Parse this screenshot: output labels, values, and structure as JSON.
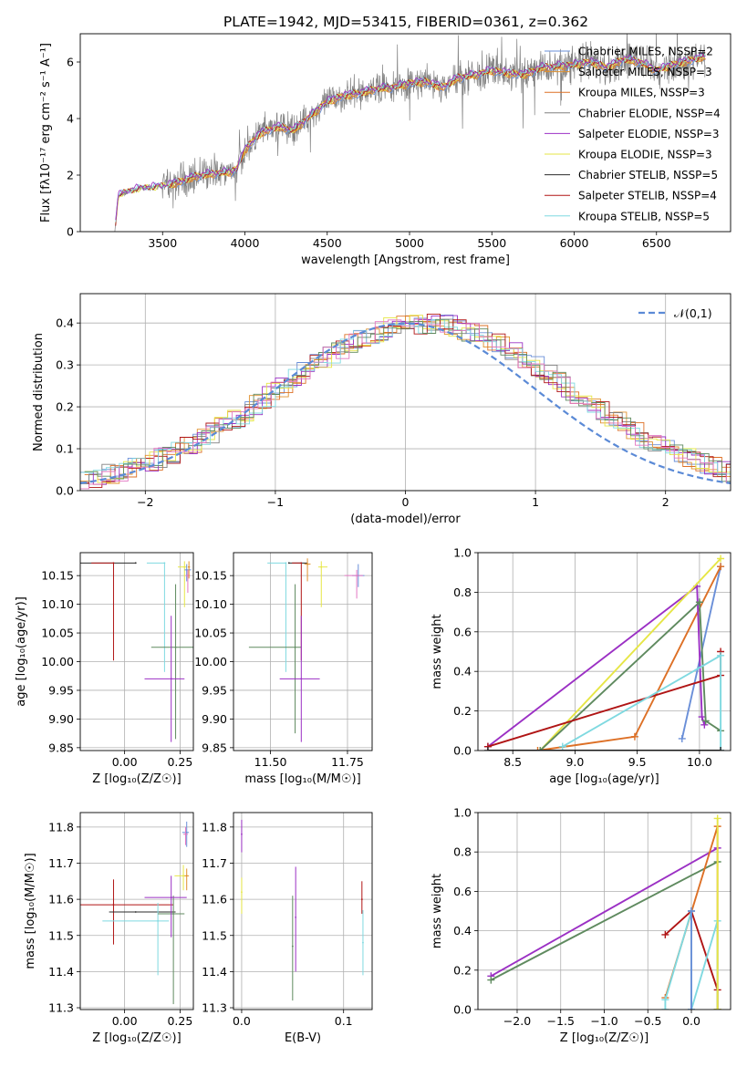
{
  "figure_title": "PLATE=1942, MJD=53415, FIBERID=0361, z=0.362",
  "colors": {
    "chabrier_miles": "#6a8fd8",
    "salpeter_miles": "#e0902d",
    "kroupa_miles": "#dd7026",
    "chabrier_elodie": "#808080",
    "salpeter_elodie": "#9b30c4",
    "kroupa_elodie": "#e6e645",
    "chabrier_stelib": "#2b2b2b",
    "salpeter_stelib": "#b01515",
    "kroupa_stelib": "#7fd9e0",
    "gauss": "#5b8ad6",
    "green": "#5f8a5f",
    "pink": "#e377c2"
  },
  "chart_data": [
    {
      "id": "spectrum",
      "type": "line",
      "xlabel": "wavelength [Angstrom, rest frame]",
      "ylabel": "Flux [fλ10⁻¹⁷ erg cm⁻² s⁻¹ A⁻¹]",
      "xlim": [
        3000,
        6950
      ],
      "ylim": [
        0,
        7
      ],
      "x_ticks": [
        "3500",
        "4000",
        "4500",
        "5000",
        "5500",
        "6000",
        "6500"
      ],
      "y_ticks": [
        "0",
        "2",
        "4",
        "6"
      ],
      "grid": false,
      "legend": "right",
      "legend_entries": [
        "Chabrier MILES, NSSP=2",
        "Salpeter MILES, NSSP=3",
        "Kroupa MILES, NSSP=3",
        "Chabrier ELODIE, NSSP=4",
        "Salpeter ELODIE, NSSP=3",
        "Kroupa ELODIE, NSSP=3",
        "Chabrier STELIB, NSSP=5",
        "Salpeter STELIB, NSSP=4",
        "Kroupa STELIB, NSSP=5"
      ],
      "continuum": {
        "x": [
          3210,
          3230,
          3300,
          3400,
          3500,
          3600,
          3700,
          3800,
          3900,
          3950,
          4000,
          4100,
          4200,
          4300,
          4400,
          4500,
          4600,
          4700,
          4800,
          4900,
          5000,
          5100,
          5200,
          5300,
          5400,
          5500,
          5600,
          5700,
          5800,
          5900,
          6000,
          6100,
          6200,
          6300,
          6400,
          6500,
          6600,
          6700,
          6800
        ],
        "y": [
          0,
          1.25,
          1.45,
          1.55,
          1.6,
          1.75,
          1.95,
          2.05,
          2.1,
          2.2,
          2.9,
          3.5,
          3.7,
          3.6,
          4.1,
          4.6,
          4.8,
          4.9,
          5.05,
          5.1,
          5.25,
          5.3,
          5.1,
          5.45,
          5.55,
          5.7,
          5.6,
          5.55,
          5.8,
          5.85,
          5.9,
          6.0,
          5.8,
          6.1,
          6.0,
          5.7,
          5.9,
          6.05,
          6.2
        ]
      }
    },
    {
      "id": "residuals",
      "type": "bar",
      "xlabel": "(data-model)/error",
      "ylabel": "Normed distribution",
      "xlim": [
        -2.5,
        2.5
      ],
      "ylim": [
        0,
        0.47
      ],
      "x_ticks": [
        "−2",
        "−1",
        "0",
        "1",
        "2"
      ],
      "y_ticks": [
        "0.0",
        "0.1",
        "0.2",
        "0.3",
        "0.4"
      ],
      "grid": true,
      "legend": "top-right",
      "legend_label": "𝒩(0,1)"
    },
    {
      "id": "age_vs_z",
      "type": "scatter",
      "xlabel": "Z [log₁₀(Z/Z☉)]",
      "ylabel": "age  [log₁₀(age/yr)]",
      "xlim": [
        -0.2,
        0.31
      ],
      "ylim": [
        9.845,
        10.19
      ],
      "x_ticks": [
        "0.00",
        "0.25"
      ],
      "y_ticks": [
        "9.85",
        "9.90",
        "9.95",
        "10.00",
        "10.05",
        "10.10",
        "10.15"
      ],
      "grid": true,
      "points": [
        {
          "x": 0.05,
          "y": 10.172,
          "xerr": [
            0.25,
            0.0
          ],
          "yerr": [
            0.0,
            0.0
          ],
          "series": "chabrier_stelib"
        },
        {
          "x": -0.05,
          "y": 10.172,
          "xerr": [
            0.1,
            0.0
          ],
          "yerr": [
            0.17,
            0.0
          ],
          "series": "salpeter_stelib"
        },
        {
          "x": 0.18,
          "y": 10.172,
          "xerr": [
            0.08,
            0.0
          ],
          "yerr": [
            0.19,
            0.0
          ],
          "series": "kroupa_stelib"
        },
        {
          "x": 0.23,
          "y": 10.025,
          "xerr": [
            0.11,
            0.08
          ],
          "yerr": [
            0.16,
            0.11
          ],
          "series": "green"
        },
        {
          "x": 0.21,
          "y": 9.97,
          "xerr": [
            0.12,
            0.06
          ],
          "yerr": [
            0.11,
            0.11
          ],
          "series": "salpeter_elodie"
        },
        {
          "x": 0.27,
          "y": 10.165,
          "xerr": [
            0.03,
            0.01
          ],
          "yerr": [
            0.07,
            0.01
          ],
          "series": "kroupa_elodie"
        },
        {
          "x": 0.28,
          "y": 10.16,
          "xerr": [
            0.01,
            0.02
          ],
          "yerr": [
            0.02,
            0.01
          ],
          "series": "chabrier_miles"
        },
        {
          "x": 0.285,
          "y": 10.15,
          "xerr": [
            0.01,
            0.01
          ],
          "yerr": [
            0.03,
            0.01
          ],
          "series": "pink"
        },
        {
          "x": 0.29,
          "y": 10.165,
          "xerr": [
            0.005,
            0.005
          ],
          "yerr": [
            0.02,
            0.01
          ],
          "series": "salpeter_miles"
        }
      ]
    },
    {
      "id": "age_vs_mass",
      "type": "scatter",
      "xlabel": "mass [log₁₀(M/M☉)]",
      "ylabel": "",
      "xlim": [
        11.38,
        11.83
      ],
      "ylim": [
        9.845,
        10.19
      ],
      "x_ticks": [
        "11.50",
        "11.75"
      ],
      "y_ticks": [
        "9.85",
        "9.90",
        "9.95",
        "10.00",
        "10.05",
        "10.10",
        "10.15"
      ],
      "grid": true,
      "points": [
        {
          "x": 11.56,
          "y": 10.172,
          "xerr": [
            0.0,
            0.06
          ],
          "yerr": [
            0.0,
            0.0
          ],
          "series": "chabrier_stelib"
        },
        {
          "x": 11.6,
          "y": 10.172,
          "xerr": [
            0.03,
            0.0
          ],
          "yerr": [
            0.17,
            0.0
          ],
          "series": "salpeter_stelib"
        },
        {
          "x": 11.55,
          "y": 10.172,
          "xerr": [
            0.06,
            0.0
          ],
          "yerr": [
            0.19,
            0.0
          ],
          "series": "kroupa_stelib"
        },
        {
          "x": 11.58,
          "y": 10.025,
          "xerr": [
            0.15,
            0.02
          ],
          "yerr": [
            0.15,
            0.11
          ],
          "series": "green"
        },
        {
          "x": 11.6,
          "y": 9.97,
          "xerr": [
            0.07,
            0.06
          ],
          "yerr": [
            0.11,
            0.11
          ],
          "series": "salpeter_elodie"
        },
        {
          "x": 11.665,
          "y": 10.165,
          "xerr": [
            0.01,
            0.02
          ],
          "yerr": [
            0.07,
            0.01
          ],
          "series": "kroupa_elodie"
        },
        {
          "x": 11.785,
          "y": 10.15,
          "xerr": [
            0.02,
            0.02
          ],
          "yerr": [
            0.02,
            0.02
          ],
          "series": "chabrier_miles"
        },
        {
          "x": 11.78,
          "y": 10.15,
          "xerr": [
            0.04,
            0.02
          ],
          "yerr": [
            0.04,
            0.01
          ],
          "series": "pink"
        },
        {
          "x": 11.62,
          "y": 10.17,
          "xerr": [
            0.01,
            0.01
          ],
          "yerr": [
            0.03,
            0.01
          ],
          "series": "salpeter_miles"
        }
      ]
    },
    {
      "id": "weight_vs_age",
      "type": "line",
      "xlabel": "age  [log₁₀(age/yr)]",
      "ylabel": "mass weight",
      "xlim": [
        8.22,
        10.25
      ],
      "ylim": [
        0,
        1
      ],
      "x_ticks": [
        "8.5",
        "9.0",
        "9.5",
        "10.0"
      ],
      "y_ticks": [
        "0.0",
        "0.2",
        "0.4",
        "0.6",
        "0.8",
        "1.0"
      ],
      "grid": true,
      "series": [
        {
          "key": "chabrier_miles",
          "x": [
            9.86,
            10.17
          ],
          "y": [
            0.06,
            0.93
          ]
        },
        {
          "key": "kroupa_miles",
          "x": [
            8.7,
            9.48,
            10.17
          ],
          "y": [
            0.0,
            0.07,
            0.93
          ]
        },
        {
          "key": "salpeter_elodie",
          "x": [
            8.3,
            9.98,
            10.02,
            10.04
          ],
          "y": [
            0.02,
            0.83,
            0.17,
            0.13
          ]
        },
        {
          "key": "kroupa_elodie",
          "x": [
            8.72,
            10.17
          ],
          "y": [
            0.0,
            0.97
          ]
        },
        {
          "key": "green",
          "x": [
            8.72,
            10.0,
            10.05,
            10.17
          ],
          "y": [
            0.0,
            0.75,
            0.15,
            0.1
          ]
        },
        {
          "key": "salpeter_stelib",
          "x": [
            8.3,
            10.17,
            10.17
          ],
          "y": [
            0.02,
            0.38,
            0.5
          ]
        },
        {
          "key": "kroupa_stelib",
          "x": [
            8.9,
            10.17,
            10.17
          ],
          "y": [
            0.02,
            0.48,
            0.0
          ]
        },
        {
          "key": "chabrier_stelib",
          "x": [
            8.3,
            10.17
          ],
          "y": [
            0.0,
            0.0
          ]
        }
      ]
    },
    {
      "id": "mass_vs_z",
      "type": "scatter",
      "xlabel": "Z [log₁₀(Z/Z☉)]",
      "ylabel": "mass [log₁₀(M/M☉)]",
      "xlim": [
        -0.2,
        0.31
      ],
      "ylim": [
        11.295,
        11.84
      ],
      "x_ticks": [
        "0.00",
        "0.25"
      ],
      "y_ticks": [
        "11.3",
        "11.4",
        "11.5",
        "11.6",
        "11.7",
        "11.8"
      ],
      "grid": true,
      "points": [
        {
          "x": -0.05,
          "y": 11.585,
          "xerr": [
            0.15,
            0.27
          ],
          "yerr": [
            0.11,
            0.07
          ],
          "series": "salpeter_stelib"
        },
        {
          "x": 0.05,
          "y": 11.565,
          "xerr": [
            0.12,
            0.18
          ],
          "yerr": [
            0.0,
            0.0
          ],
          "series": "chabrier_stelib"
        },
        {
          "x": 0.15,
          "y": 11.54,
          "xerr": [
            0.25,
            0.05
          ],
          "yerr": [
            0.15,
            0.05
          ],
          "series": "kroupa_stelib"
        },
        {
          "x": 0.22,
          "y": 11.56,
          "xerr": [
            0.07,
            0.05
          ],
          "yerr": [
            0.25,
            0.05
          ],
          "series": "green"
        },
        {
          "x": 0.21,
          "y": 11.605,
          "xerr": [
            0.12,
            0.07
          ],
          "yerr": [
            0.11,
            0.06
          ],
          "series": "salpeter_elodie"
        },
        {
          "x": 0.265,
          "y": 11.665,
          "xerr": [
            0.04,
            0.01
          ],
          "yerr": [
            0.04,
            0.03
          ],
          "series": "kroupa_elodie"
        },
        {
          "x": 0.28,
          "y": 11.665,
          "xerr": [
            0.01,
            0.01
          ],
          "yerr": [
            0.04,
            0.02
          ],
          "series": "salpeter_miles"
        },
        {
          "x": 0.28,
          "y": 11.785,
          "xerr": [
            0.02,
            0.01
          ],
          "yerr": [
            0.04,
            0.03
          ],
          "series": "chabrier_miles"
        },
        {
          "x": 0.275,
          "y": 11.78,
          "xerr": [
            0.01,
            0.01
          ],
          "yerr": [
            0.03,
            0.02
          ],
          "series": "pink"
        }
      ]
    },
    {
      "id": "mass_vs_ebv",
      "type": "scatter",
      "xlabel": "E(B-V)",
      "ylabel": "",
      "xlim": [
        -0.008,
        0.128
      ],
      "ylim": [
        11.295,
        11.84
      ],
      "x_ticks": [
        "0.0",
        "0.1"
      ],
      "y_ticks": [
        "11.3",
        "11.4",
        "11.5",
        "11.6",
        "11.7",
        "11.8"
      ],
      "grid": true,
      "points": [
        {
          "x": 0.0,
          "y": 11.78,
          "xerr": [
            0,
            0
          ],
          "yerr": [
            0.05,
            0.04
          ],
          "series": "salpeter_elodie"
        },
        {
          "x": 0.0,
          "y": 11.62,
          "xerr": [
            0,
            0
          ],
          "yerr": [
            0.06,
            0.04
          ],
          "series": "kroupa_elodie"
        },
        {
          "x": 0.05,
          "y": 11.47,
          "xerr": [
            0,
            0
          ],
          "yerr": [
            0.15,
            0.14
          ],
          "series": "green"
        },
        {
          "x": 0.053,
          "y": 11.55,
          "xerr": [
            0,
            0
          ],
          "yerr": [
            0.15,
            0.14
          ],
          "series": "salpeter_elodie"
        },
        {
          "x": 0.118,
          "y": 11.6,
          "xerr": [
            0,
            0
          ],
          "yerr": [
            0.04,
            0.05
          ],
          "series": "salpeter_stelib"
        },
        {
          "x": 0.119,
          "y": 11.48,
          "xerr": [
            0,
            0
          ],
          "yerr": [
            0.09,
            0.09
          ],
          "series": "kroupa_stelib"
        }
      ]
    },
    {
      "id": "weight_vs_z",
      "type": "line",
      "xlabel": "Z [log₁₀(Z/Z☉)]",
      "ylabel": "mass weight",
      "xlim": [
        -2.45,
        0.45
      ],
      "ylim": [
        0,
        1
      ],
      "x_ticks": [
        "−2.0",
        "−1.5",
        "−1.0",
        "−0.5",
        "0.0"
      ],
      "y_ticks": [
        "0.0",
        "0.2",
        "0.4",
        "0.6",
        "0.8",
        "1.0"
      ],
      "grid": true,
      "series": [
        {
          "key": "salpeter_elodie",
          "x": [
            -2.3,
            0.3
          ],
          "y": [
            0.17,
            0.82
          ]
        },
        {
          "key": "green",
          "x": [
            -2.3,
            0.3
          ],
          "y": [
            0.15,
            0.75
          ]
        },
        {
          "key": "salpeter_stelib",
          "x": [
            -0.3,
            0.0,
            0.3,
            0.3
          ],
          "y": [
            0.38,
            0.5,
            0.1,
            0.0
          ]
        },
        {
          "key": "kroupa_miles",
          "x": [
            -0.3,
            0.3,
            0.3
          ],
          "y": [
            0.06,
            0.93,
            0.0
          ]
        },
        {
          "key": "kroupa_stelib",
          "x": [
            -0.3,
            -0.3,
            0.0,
            0.0,
            0.3,
            0.3
          ],
          "y": [
            0.0,
            0.05,
            0.5,
            0.0,
            0.45,
            0.0
          ]
        },
        {
          "key": "kroupa_elodie",
          "x": [
            0.3,
            0.3
          ],
          "y": [
            0.0,
            0.97
          ]
        },
        {
          "key": "chabrier_miles",
          "x": [
            0.0,
            0.0
          ],
          "y": [
            0.0,
            0.5
          ]
        }
      ]
    }
  ]
}
